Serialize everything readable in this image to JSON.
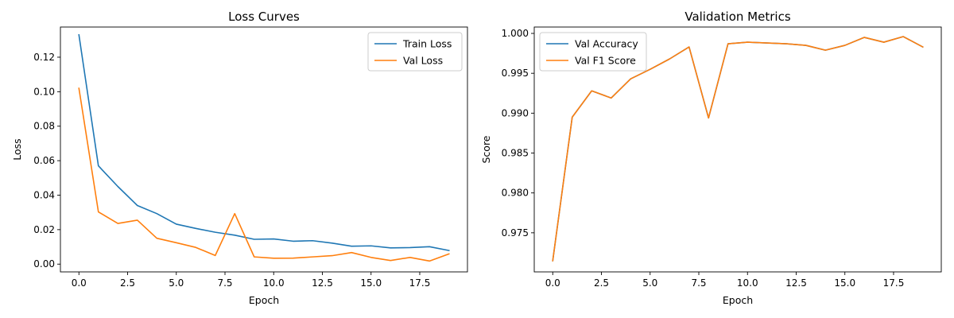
{
  "chart_data": [
    {
      "type": "line",
      "title": "Loss Curves",
      "xlabel": "Epoch",
      "ylabel": "Loss",
      "xlim": [
        -0.95,
        19.95
      ],
      "ylim": [
        -0.0045,
        0.1375
      ],
      "xticks": [
        0.0,
        2.5,
        5.0,
        7.5,
        10.0,
        12.5,
        15.0,
        17.5
      ],
      "xtick_labels": [
        "0.0",
        "2.5",
        "5.0",
        "7.5",
        "10.0",
        "12.5",
        "15.0",
        "17.5"
      ],
      "yticks": [
        0.0,
        0.02,
        0.04,
        0.06,
        0.08,
        0.1,
        0.12
      ],
      "ytick_labels": [
        "0.00",
        "0.02",
        "0.04",
        "0.06",
        "0.08",
        "0.10",
        "0.12"
      ],
      "grid": false,
      "legend_position": "top-right",
      "x": [
        0,
        1,
        2,
        3,
        4,
        5,
        6,
        7,
        8,
        9,
        10,
        11,
        12,
        13,
        14,
        15,
        16,
        17,
        18,
        19
      ],
      "series": [
        {
          "name": "Train Loss",
          "color": "#1f77b4",
          "values": [
            0.133,
            0.057,
            0.045,
            0.034,
            0.0293,
            0.0232,
            0.0207,
            0.0185,
            0.0168,
            0.0144,
            0.0146,
            0.0133,
            0.0136,
            0.0122,
            0.0104,
            0.0106,
            0.0094,
            0.0096,
            0.0101,
            0.0079
          ]
        },
        {
          "name": "Val Loss",
          "color": "#ff7f0e",
          "values": [
            0.102,
            0.0303,
            0.0236,
            0.0255,
            0.015,
            0.0124,
            0.0097,
            0.005,
            0.0293,
            0.0042,
            0.0034,
            0.0035,
            0.0042,
            0.0049,
            0.0067,
            0.0039,
            0.0021,
            0.0039,
            0.0018,
            0.0059
          ]
        }
      ]
    },
    {
      "type": "line",
      "title": "Validation Metrics",
      "xlabel": "Epoch",
      "ylabel": "Score",
      "xlim": [
        -0.95,
        19.95
      ],
      "ylim": [
        0.9701,
        1.0008
      ],
      "xticks": [
        0.0,
        2.5,
        5.0,
        7.5,
        10.0,
        12.5,
        15.0,
        17.5
      ],
      "xtick_labels": [
        "0.0",
        "2.5",
        "5.0",
        "7.5",
        "10.0",
        "12.5",
        "15.0",
        "17.5"
      ],
      "yticks": [
        0.975,
        0.98,
        0.985,
        0.99,
        0.995,
        1.0
      ],
      "ytick_labels": [
        "0.975",
        "0.980",
        "0.985",
        "0.990",
        "0.995",
        "1.000"
      ],
      "grid": false,
      "legend_position": "top-left",
      "x": [
        0,
        1,
        2,
        3,
        4,
        5,
        6,
        7,
        8,
        9,
        10,
        11,
        12,
        13,
        14,
        15,
        16,
        17,
        18,
        19
      ],
      "series": [
        {
          "name": "Val Accuracy",
          "color": "#1f77b4",
          "values": [
            0.9715,
            0.9895,
            0.9928,
            0.9919,
            0.9943,
            0.9955,
            0.9968,
            0.9983,
            0.9894,
            0.9987,
            0.9989,
            0.9988,
            0.9987,
            0.9985,
            0.9979,
            0.9985,
            0.9995,
            0.9989,
            0.9996,
            0.9983
          ]
        },
        {
          "name": "Val F1 Score",
          "color": "#ff7f0e",
          "values": [
            0.9715,
            0.9895,
            0.9928,
            0.9919,
            0.9943,
            0.9955,
            0.9968,
            0.9983,
            0.9894,
            0.9987,
            0.9989,
            0.9988,
            0.9987,
            0.9985,
            0.9979,
            0.9985,
            0.9995,
            0.9989,
            0.9996,
            0.9983
          ]
        }
      ]
    }
  ]
}
